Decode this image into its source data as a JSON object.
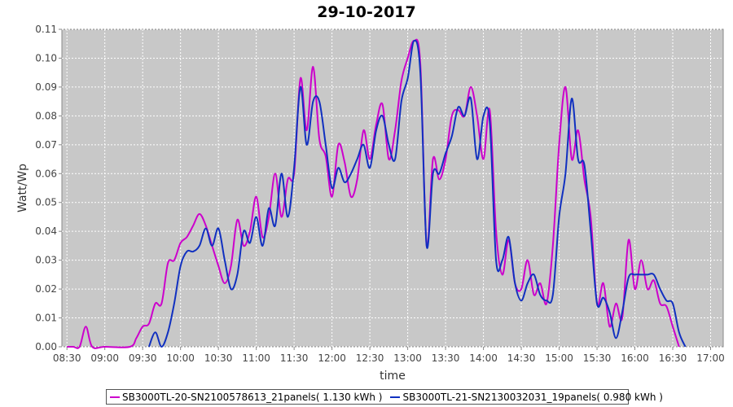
{
  "chart_data": {
    "type": "line",
    "title": "29-10-2017",
    "xlabel": "time",
    "ylabel": "Watt/Wp",
    "xlim": [
      "08:26",
      "17:10"
    ],
    "ylim": [
      0,
      0.11
    ],
    "x_ticks": [
      "08:30",
      "09:00",
      "09:30",
      "10:00",
      "10:30",
      "11:00",
      "11:30",
      "12:00",
      "12:30",
      "13:00",
      "13:30",
      "14:00",
      "14:30",
      "15:00",
      "15:30",
      "16:00",
      "16:30",
      "17:00"
    ],
    "y_ticks": [
      "0.00",
      "0.01",
      "0.02",
      "0.03",
      "0.04",
      "0.05",
      "0.06",
      "0.07",
      "0.08",
      "0.09",
      "0.10",
      "0.11"
    ],
    "grid": true,
    "legend_position": "bottom",
    "series": [
      {
        "name": "SB3000TL-20-SN2100578613_21panels( 1.130 kWh )",
        "color": "#cc00cc",
        "points": [
          [
            "08:30",
            0.0
          ],
          [
            "08:35",
            0.0
          ],
          [
            "08:40",
            0.0
          ],
          [
            "08:45",
            0.007
          ],
          [
            "08:50",
            0.0
          ],
          [
            "09:00",
            0.0
          ],
          [
            "09:20",
            0.0
          ],
          [
            "09:25",
            0.003
          ],
          [
            "09:30",
            0.007
          ],
          [
            "09:35",
            0.008
          ],
          [
            "09:40",
            0.015
          ],
          [
            "09:45",
            0.015
          ],
          [
            "09:50",
            0.029
          ],
          [
            "09:55",
            0.03
          ],
          [
            "10:00",
            0.036
          ],
          [
            "10:05",
            0.038
          ],
          [
            "10:10",
            0.042
          ],
          [
            "10:15",
            0.046
          ],
          [
            "10:20",
            0.042
          ],
          [
            "10:25",
            0.035
          ],
          [
            "10:30",
            0.028
          ],
          [
            "10:35",
            0.022
          ],
          [
            "10:40",
            0.028
          ],
          [
            "10:45",
            0.044
          ],
          [
            "10:50",
            0.035
          ],
          [
            "10:55",
            0.04
          ],
          [
            "11:00",
            0.052
          ],
          [
            "11:05",
            0.038
          ],
          [
            "11:10",
            0.045
          ],
          [
            "11:15",
            0.06
          ],
          [
            "11:20",
            0.045
          ],
          [
            "11:25",
            0.058
          ],
          [
            "11:30",
            0.06
          ],
          [
            "11:35",
            0.093
          ],
          [
            "11:40",
            0.075
          ],
          [
            "11:45",
            0.097
          ],
          [
            "11:50",
            0.072
          ],
          [
            "11:55",
            0.066
          ],
          [
            "12:00",
            0.052
          ],
          [
            "12:05",
            0.07
          ],
          [
            "12:10",
            0.064
          ],
          [
            "12:15",
            0.052
          ],
          [
            "12:20",
            0.058
          ],
          [
            "12:25",
            0.075
          ],
          [
            "12:30",
            0.065
          ],
          [
            "12:35",
            0.077
          ],
          [
            "12:40",
            0.084
          ],
          [
            "12:45",
            0.065
          ],
          [
            "12:50",
            0.075
          ],
          [
            "12:55",
            0.092
          ],
          [
            "13:00",
            0.1
          ],
          [
            "13:05",
            0.106
          ],
          [
            "13:10",
            0.098
          ],
          [
            "13:15",
            0.035
          ],
          [
            "13:20",
            0.065
          ],
          [
            "13:25",
            0.058
          ],
          [
            "13:30",
            0.065
          ],
          [
            "13:35",
            0.08
          ],
          [
            "13:40",
            0.082
          ],
          [
            "13:45",
            0.08
          ],
          [
            "13:50",
            0.09
          ],
          [
            "13:55",
            0.08
          ],
          [
            "14:00",
            0.065
          ],
          [
            "14:05",
            0.082
          ],
          [
            "14:10",
            0.04
          ],
          [
            "14:15",
            0.025
          ],
          [
            "14:20",
            0.037
          ],
          [
            "14:25",
            0.022
          ],
          [
            "14:30",
            0.02
          ],
          [
            "14:35",
            0.03
          ],
          [
            "14:40",
            0.018
          ],
          [
            "14:45",
            0.022
          ],
          [
            "14:50",
            0.015
          ],
          [
            "14:55",
            0.035
          ],
          [
            "15:00",
            0.07
          ],
          [
            "15:05",
            0.09
          ],
          [
            "15:10",
            0.065
          ],
          [
            "15:15",
            0.075
          ],
          [
            "15:20",
            0.058
          ],
          [
            "15:25",
            0.045
          ],
          [
            "15:30",
            0.015
          ],
          [
            "15:35",
            0.022
          ],
          [
            "15:40",
            0.007
          ],
          [
            "15:45",
            0.015
          ],
          [
            "15:50",
            0.01
          ],
          [
            "15:55",
            0.037
          ],
          [
            "16:00",
            0.02
          ],
          [
            "16:05",
            0.03
          ],
          [
            "16:10",
            0.02
          ],
          [
            "16:15",
            0.023
          ],
          [
            "16:20",
            0.015
          ],
          [
            "16:25",
            0.014
          ],
          [
            "16:30",
            0.007
          ],
          [
            "16:35",
            0.0
          ]
        ]
      },
      {
        "name": "SB3000TL-21-SN2130032031_19panels( 0.980 kWh )",
        "color": "#1030c0",
        "points": [
          [
            "09:35",
            0.0
          ],
          [
            "09:40",
            0.005
          ],
          [
            "09:45",
            0.0
          ],
          [
            "09:50",
            0.005
          ],
          [
            "09:55",
            0.015
          ],
          [
            "10:00",
            0.028
          ],
          [
            "10:05",
            0.033
          ],
          [
            "10:10",
            0.033
          ],
          [
            "10:15",
            0.035
          ],
          [
            "10:20",
            0.041
          ],
          [
            "10:25",
            0.035
          ],
          [
            "10:30",
            0.041
          ],
          [
            "10:35",
            0.03
          ],
          [
            "10:40",
            0.02
          ],
          [
            "10:45",
            0.025
          ],
          [
            "10:50",
            0.04
          ],
          [
            "10:55",
            0.036
          ],
          [
            "11:00",
            0.045
          ],
          [
            "11:05",
            0.035
          ],
          [
            "11:10",
            0.048
          ],
          [
            "11:15",
            0.042
          ],
          [
            "11:20",
            0.06
          ],
          [
            "11:25",
            0.045
          ],
          [
            "11:30",
            0.062
          ],
          [
            "11:35",
            0.09
          ],
          [
            "11:40",
            0.07
          ],
          [
            "11:45",
            0.085
          ],
          [
            "11:50",
            0.085
          ],
          [
            "11:55",
            0.07
          ],
          [
            "12:00",
            0.055
          ],
          [
            "12:05",
            0.062
          ],
          [
            "12:10",
            0.057
          ],
          [
            "12:15",
            0.06
          ],
          [
            "12:20",
            0.065
          ],
          [
            "12:25",
            0.07
          ],
          [
            "12:30",
            0.062
          ],
          [
            "12:35",
            0.075
          ],
          [
            "12:40",
            0.08
          ],
          [
            "12:45",
            0.07
          ],
          [
            "12:50",
            0.065
          ],
          [
            "12:55",
            0.085
          ],
          [
            "13:00",
            0.093
          ],
          [
            "13:05",
            0.106
          ],
          [
            "13:10",
            0.095
          ],
          [
            "13:15",
            0.035
          ],
          [
            "13:20",
            0.06
          ],
          [
            "13:25",
            0.06
          ],
          [
            "13:30",
            0.067
          ],
          [
            "13:35",
            0.073
          ],
          [
            "13:40",
            0.083
          ],
          [
            "13:45",
            0.08
          ],
          [
            "13:50",
            0.086
          ],
          [
            "13:55",
            0.065
          ],
          [
            "14:00",
            0.08
          ],
          [
            "14:05",
            0.078
          ],
          [
            "14:10",
            0.03
          ],
          [
            "14:15",
            0.03
          ],
          [
            "14:20",
            0.038
          ],
          [
            "14:25",
            0.022
          ],
          [
            "14:30",
            0.016
          ],
          [
            "14:35",
            0.022
          ],
          [
            "14:40",
            0.025
          ],
          [
            "14:45",
            0.018
          ],
          [
            "14:50",
            0.016
          ],
          [
            "14:55",
            0.018
          ],
          [
            "15:00",
            0.045
          ],
          [
            "15:05",
            0.06
          ],
          [
            "15:10",
            0.086
          ],
          [
            "15:15",
            0.065
          ],
          [
            "15:20",
            0.063
          ],
          [
            "15:25",
            0.04
          ],
          [
            "15:30",
            0.015
          ],
          [
            "15:35",
            0.017
          ],
          [
            "15:40",
            0.012
          ],
          [
            "15:45",
            0.003
          ],
          [
            "15:50",
            0.012
          ],
          [
            "15:55",
            0.024
          ],
          [
            "16:00",
            0.025
          ],
          [
            "16:05",
            0.025
          ],
          [
            "16:10",
            0.025
          ],
          [
            "16:15",
            0.025
          ],
          [
            "16:20",
            0.02
          ],
          [
            "16:25",
            0.016
          ],
          [
            "16:30",
            0.015
          ],
          [
            "16:35",
            0.005
          ],
          [
            "16:40",
            0.0
          ]
        ]
      }
    ]
  }
}
